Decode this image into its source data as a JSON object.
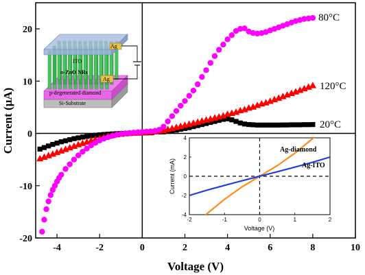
{
  "chart_data": [
    {
      "type": "scatter",
      "xlabel": "Voltage (V)",
      "ylabel": "Current (μA)",
      "xlim": [
        -5,
        10
      ],
      "ylim": [
        -20,
        25
      ],
      "xticks": [
        -4,
        -2,
        0,
        2,
        4,
        6,
        8,
        10
      ],
      "yticks": [
        -20,
        -10,
        0,
        10,
        20
      ],
      "grid": false,
      "series": [
        {
          "name": "80°C",
          "color": "#ff00ff",
          "marker": "circle",
          "x": [
            -4.7,
            -4.6,
            -4.5,
            -4.4,
            -4.3,
            -4.2,
            -4.1,
            -4.0,
            -3.9,
            -3.8,
            -3.6,
            -3.4,
            -3.2,
            -3.0,
            -2.8,
            -2.6,
            -2.4,
            -2.2,
            -2.0,
            -1.8,
            -1.6,
            -1.4,
            -1.2,
            -1.0,
            -0.8,
            -0.6,
            -0.4,
            -0.2,
            0.0,
            0.2,
            0.4,
            0.6,
            0.8,
            1.0,
            1.2,
            1.4,
            1.6,
            1.8,
            2.0,
            2.2,
            2.4,
            2.6,
            2.8,
            3.0,
            3.2,
            3.4,
            3.6,
            3.8,
            4.0,
            4.2,
            4.4,
            4.6,
            4.8,
            5.0,
            5.2,
            5.4,
            5.6,
            5.8,
            6.0,
            6.2,
            6.4,
            6.6,
            6.8,
            7.0,
            7.2,
            7.4,
            7.6,
            7.8,
            8.0
          ],
          "y": [
            -18.8,
            -16.5,
            -14.5,
            -13.0,
            -11.8,
            -10.8,
            -10.0,
            -9.2,
            -8.5,
            -7.9,
            -6.8,
            -5.9,
            -5.0,
            -4.2,
            -3.5,
            -2.9,
            -2.3,
            -1.8,
            -1.35,
            -1.0,
            -0.7,
            -0.45,
            -0.25,
            -0.1,
            0.0,
            0.08,
            0.15,
            0.22,
            0.3,
            0.35,
            0.4,
            0.5,
            0.7,
            1.3,
            2.3,
            3.3,
            4.3,
            5.3,
            6.2,
            7.2,
            8.2,
            9.4,
            10.8,
            12.1,
            13.5,
            14.8,
            16.0,
            17.0,
            18.0,
            18.8,
            19.6,
            20.0,
            20.1,
            19.5,
            19.2,
            19.1,
            19.2,
            19.4,
            19.7,
            20.0,
            20.3,
            20.6,
            20.9,
            21.2,
            21.5,
            21.7,
            21.9,
            22.0,
            22.1
          ]
        },
        {
          "name": "120°C",
          "color": "#ff0000",
          "marker": "triangle",
          "x": [
            -4.8,
            -4.6,
            -4.4,
            -4.2,
            -4.0,
            -3.8,
            -3.6,
            -3.4,
            -3.2,
            -3.0,
            -2.8,
            -2.6,
            -2.4,
            -2.2,
            -2.0,
            -1.8,
            -1.6,
            -1.4,
            -1.2,
            -1.0,
            -0.8,
            -0.6,
            -0.4,
            -0.2,
            0.0,
            0.2,
            0.4,
            0.6,
            0.8,
            1.0,
            1.2,
            1.4,
            1.6,
            1.8,
            2.0,
            2.2,
            2.4,
            2.6,
            2.8,
            3.0,
            3.2,
            3.4,
            3.6,
            3.8,
            4.0,
            4.2,
            4.4,
            4.6,
            4.8,
            5.0,
            5.2,
            5.4,
            5.6,
            5.8,
            6.0,
            6.2,
            6.4,
            6.6,
            6.8,
            7.0,
            7.2,
            7.4,
            7.6,
            7.8,
            8.0
          ],
          "y": [
            -4.8,
            -4.5,
            -4.2,
            -3.9,
            -3.6,
            -3.3,
            -3.0,
            -2.7,
            -2.4,
            -2.1,
            -1.85,
            -1.6,
            -1.35,
            -1.1,
            -0.9,
            -0.7,
            -0.5,
            -0.35,
            -0.2,
            -0.1,
            0.0,
            0.05,
            0.1,
            0.15,
            0.2,
            0.25,
            0.3,
            0.35,
            0.45,
            0.6,
            0.8,
            1.0,
            1.2,
            1.4,
            1.6,
            1.8,
            2.0,
            2.2,
            2.4,
            2.6,
            2.8,
            3.0,
            3.2,
            3.4,
            3.7,
            3.9,
            4.1,
            4.4,
            4.6,
            4.9,
            5.1,
            5.4,
            5.7,
            5.9,
            6.2,
            6.5,
            6.8,
            7.1,
            7.4,
            7.7,
            8.0,
            8.3,
            8.6,
            8.9,
            9.2
          ]
        },
        {
          "name": "20°C",
          "color": "#000000",
          "marker": "square",
          "x": [
            -4.8,
            -4.6,
            -4.4,
            -4.2,
            -4.0,
            -3.8,
            -3.6,
            -3.4,
            -3.2,
            -3.0,
            -2.8,
            -2.6,
            -2.4,
            -2.2,
            -2.0,
            -1.8,
            -1.6,
            -1.4,
            -1.2,
            -1.0,
            -0.8,
            -0.6,
            -0.4,
            -0.2,
            0.0,
            0.2,
            0.4,
            0.6,
            0.8,
            1.0,
            1.2,
            1.4,
            1.6,
            1.8,
            2.0,
            2.2,
            2.4,
            2.6,
            2.8,
            3.0,
            3.2,
            3.4,
            3.6,
            3.8,
            4.0,
            4.2,
            4.4,
            4.6,
            4.8,
            5.0,
            5.2,
            5.4,
            5.6,
            5.8,
            6.0,
            6.2,
            6.4,
            6.6,
            6.8,
            7.0,
            7.2,
            7.4,
            7.6,
            7.8,
            8.0
          ],
          "y": [
            -3.0,
            -2.7,
            -2.4,
            -2.1,
            -1.85,
            -1.6,
            -1.4,
            -1.2,
            -1.0,
            -0.85,
            -0.7,
            -0.57,
            -0.45,
            -0.35,
            -0.27,
            -0.2,
            -0.14,
            -0.09,
            -0.05,
            -0.02,
            0.0,
            0.02,
            0.04,
            0.06,
            0.08,
            0.1,
            0.12,
            0.15,
            0.2,
            0.3,
            0.4,
            0.5,
            0.65,
            0.8,
            0.95,
            1.1,
            1.3,
            1.5,
            1.7,
            1.9,
            2.1,
            2.3,
            2.5,
            2.7,
            2.8,
            2.6,
            2.3,
            2.0,
            1.8,
            1.7,
            1.65,
            1.6,
            1.6,
            1.6,
            1.6,
            1.6,
            1.6,
            1.62,
            1.62,
            1.65,
            1.65,
            1.65,
            1.68,
            1.68,
            1.7
          ]
        }
      ],
      "inset_diagram": {
        "labels": [
          "Ag",
          "ITO",
          "n-ZnO NRs",
          "Ag",
          "p-degenerated diamond",
          "Si-Substrate"
        ]
      }
    },
    {
      "type": "line",
      "xlabel": "Voltage (V)",
      "ylabel": "Current (mA)",
      "xlim": [
        -2,
        2
      ],
      "ylim": [
        -4,
        4
      ],
      "xticks": [
        -2,
        -1,
        0,
        1,
        2
      ],
      "yticks": [
        -4,
        -2,
        0,
        2,
        4
      ],
      "grid": false,
      "series": [
        {
          "name": "Ag-diamond",
          "color": "#ff8c1a",
          "x": [
            -2.0,
            -1.5,
            -1.0,
            -0.5,
            0.0,
            0.5,
            1.0,
            1.5,
            2.0
          ],
          "y": [
            -5.6,
            -3.9,
            -2.4,
            -1.1,
            0.0,
            1.1,
            2.4,
            3.9,
            5.6
          ]
        },
        {
          "name": "Ag-ITO",
          "color": "#1f3fdf",
          "x": [
            -2.0,
            -1.5,
            -1.0,
            -0.5,
            0.0,
            0.5,
            1.0,
            1.5,
            2.0
          ],
          "y": [
            -2.0,
            -1.45,
            -0.95,
            -0.47,
            0.0,
            0.47,
            0.95,
            1.45,
            2.0
          ]
        }
      ]
    }
  ]
}
